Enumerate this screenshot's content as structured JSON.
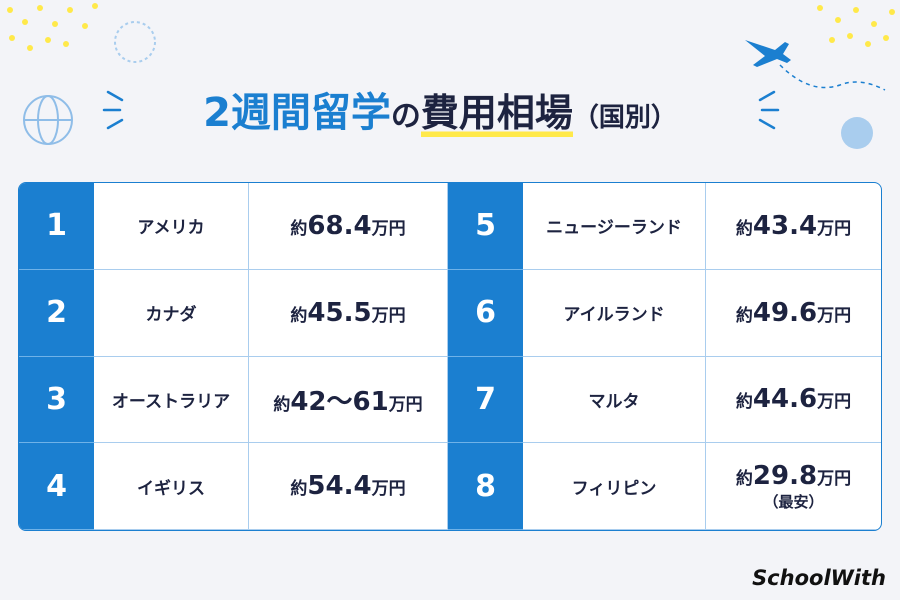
{
  "header": {
    "title_parts": [
      "2週間留学",
      "の",
      "費用相場",
      "（国別）"
    ]
  },
  "table": {
    "rows": [
      {
        "rank": 1,
        "country": "アメリカ",
        "price": {
          "prefix": "約",
          "amount": "68.4",
          "unit": "万円"
        }
      },
      {
        "rank": 2,
        "country": "カナダ",
        "price": {
          "prefix": "約",
          "amount": "45.5",
          "unit": "万円"
        }
      },
      {
        "rank": 3,
        "country": "オーストラリア",
        "price": {
          "prefix": "約",
          "amount": "42〜61",
          "unit": "万円"
        }
      },
      {
        "rank": 4,
        "country": "イギリス",
        "price": {
          "prefix": "約",
          "amount": "54.4",
          "unit": "万円"
        }
      },
      {
        "rank": 5,
        "country": "ニュージーランド",
        "price": {
          "prefix": "約",
          "amount": "43.4",
          "unit": "万円"
        }
      },
      {
        "rank": 6,
        "country": "アイルランド",
        "price": {
          "prefix": "約",
          "amount": "49.6",
          "unit": "万円"
        }
      },
      {
        "rank": 7,
        "country": "マルタ",
        "price": {
          "prefix": "約",
          "amount": "44.6",
          "unit": "万円"
        }
      },
      {
        "rank": 8,
        "country": "フィリピン",
        "price": {
          "prefix": "約",
          "amount": "29.8",
          "unit": "万円",
          "note": "（最安）"
        }
      }
    ]
  },
  "footer": {
    "logo": "SchoolWith"
  }
}
